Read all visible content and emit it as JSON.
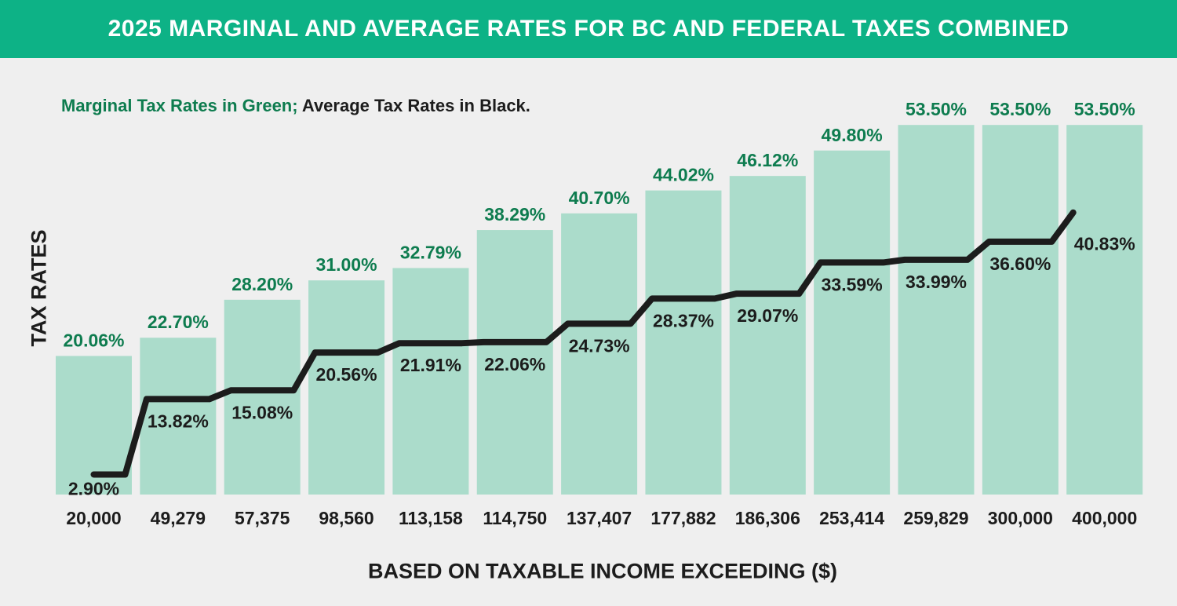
{
  "header": {
    "title": "2025 MARGINAL AND AVERAGE RATES FOR BC AND FEDERAL TAXES COMBINED"
  },
  "chart_data": {
    "type": "bar",
    "title": "2025 MARGINAL AND AVERAGE RATES FOR BC AND FEDERAL TAXES COMBINED",
    "subtitle_green": "Marginal Tax Rates in Green;",
    "subtitle_black": " Average Tax Rates in Black.",
    "xlabel": "BASED ON TAXABLE INCOME EXCEEDING ($)",
    "ylabel": "TAX RATES",
    "ylim": [
      0,
      60
    ],
    "categories": [
      "20,000",
      "49,279",
      "57,375",
      "98,560",
      "113,158",
      "114,750",
      "137,407",
      "177,882",
      "186,306",
      "253,414",
      "259,829",
      "300,000",
      "400,000"
    ],
    "series": [
      {
        "name": "Marginal Tax Rates",
        "type": "bar",
        "color": "#abdccb",
        "label_color": "#0e7c4f",
        "values": [
          20.06,
          22.7,
          28.2,
          31.0,
          32.79,
          38.29,
          40.7,
          44.02,
          46.12,
          49.8,
          53.5,
          53.5,
          53.5
        ],
        "labels": [
          "20.06%",
          "22.70%",
          "28.20%",
          "31.00%",
          "32.79%",
          "38.29%",
          "40.70%",
          "44.02%",
          "46.12%",
          "49.80%",
          "53.50%",
          "53.50%",
          "53.50%"
        ]
      },
      {
        "name": "Average Tax Rates",
        "type": "line",
        "color": "#1c1c1c",
        "values": [
          2.9,
          13.82,
          15.08,
          20.56,
          21.91,
          22.06,
          24.73,
          28.37,
          29.07,
          33.59,
          33.99,
          36.6,
          40.83
        ],
        "labels": [
          "2.90%",
          "13.82%",
          "15.08%",
          "20.56%",
          "21.91%",
          "22.06%",
          "24.73%",
          "28.37%",
          "29.07%",
          "33.59%",
          "33.99%",
          "36.60%",
          "40.83%"
        ]
      }
    ],
    "grid": false,
    "legend": "none"
  }
}
